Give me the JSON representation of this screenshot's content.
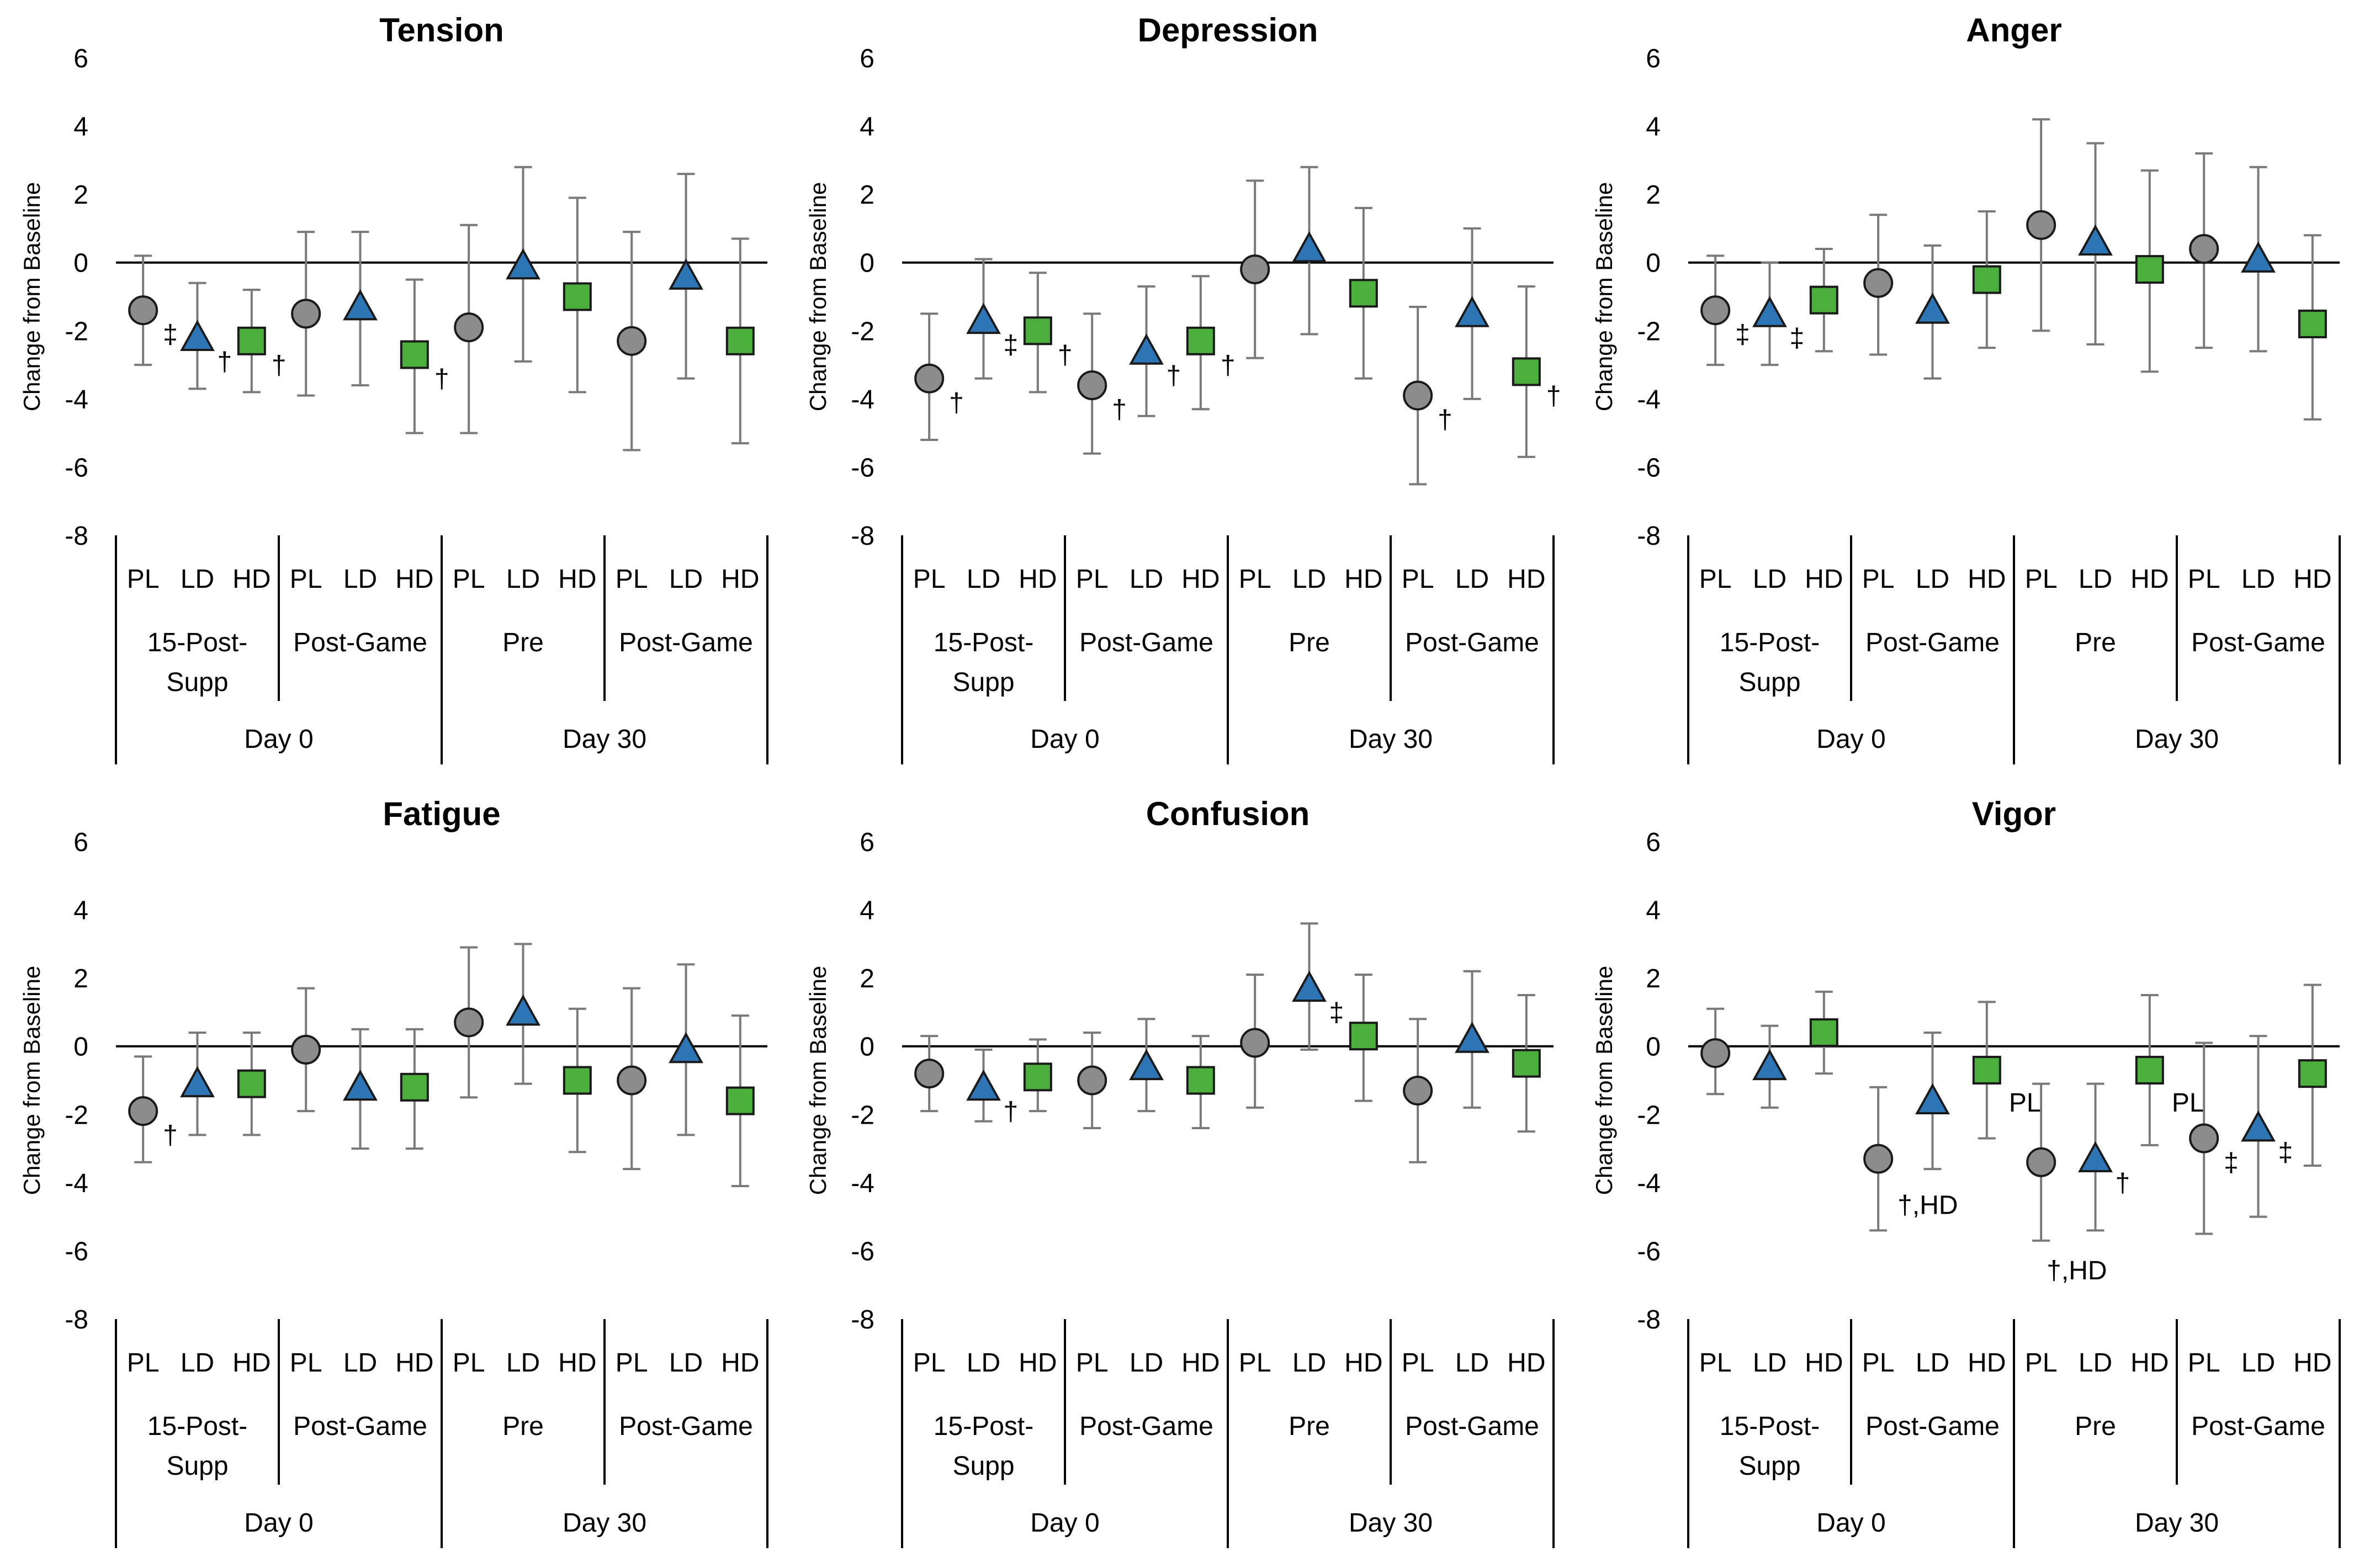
{
  "figure": {
    "y_axis_label": "Change from Baseline"
  },
  "chart_data": [
    {
      "type": "scatter",
      "title": "Tension",
      "ylabel": "Change from Baseline",
      "ylim": [
        -8,
        6
      ],
      "yticks": [
        6,
        4,
        2,
        0,
        -2,
        -4,
        -6,
        -8
      ],
      "x_groups": [
        {
          "level1": "PL",
          "level2": "15-Post-Supp",
          "level3": "Day 0"
        },
        {
          "level1": "LD",
          "level2": "15-Post-Supp",
          "level3": "Day 0"
        },
        {
          "level1": "HD",
          "level2": "15-Post-Supp",
          "level3": "Day 0"
        },
        {
          "level1": "PL",
          "level2": "Post-Game",
          "level3": "Day 0"
        },
        {
          "level1": "LD",
          "level2": "Post-Game",
          "level3": "Day 0"
        },
        {
          "level1": "HD",
          "level2": "Post-Game",
          "level3": "Day 0"
        },
        {
          "level1": "PL",
          "level2": "Pre",
          "level3": "Day 30"
        },
        {
          "level1": "LD",
          "level2": "Pre",
          "level3": "Day 30"
        },
        {
          "level1": "HD",
          "level2": "Pre",
          "level3": "Day 30"
        },
        {
          "level1": "PL",
          "level2": "Post-Game",
          "level3": "Day 30"
        },
        {
          "level1": "LD",
          "level2": "Post-Game",
          "level3": "Day 30"
        },
        {
          "level1": "HD",
          "level2": "Post-Game",
          "level3": "Day 30"
        }
      ],
      "points": [
        {
          "group": "PL",
          "mean": -1.4,
          "lo": -3.0,
          "hi": 0.2,
          "mark": "‡"
        },
        {
          "group": "LD",
          "mean": -2.2,
          "lo": -3.7,
          "hi": -0.6,
          "mark": "†"
        },
        {
          "group": "HD",
          "mean": -2.3,
          "lo": -3.8,
          "hi": -0.8,
          "mark": "†"
        },
        {
          "group": "PL",
          "mean": -1.5,
          "lo": -3.9,
          "hi": 0.9,
          "mark": ""
        },
        {
          "group": "LD",
          "mean": -1.3,
          "lo": -3.6,
          "hi": 0.9,
          "mark": ""
        },
        {
          "group": "HD",
          "mean": -2.7,
          "lo": -5.0,
          "hi": -0.5,
          "mark": "†"
        },
        {
          "group": "PL",
          "mean": -1.9,
          "lo": -5.0,
          "hi": 1.1,
          "mark": ""
        },
        {
          "group": "LD",
          "mean": -0.1,
          "lo": -2.9,
          "hi": 2.8,
          "mark": ""
        },
        {
          "group": "HD",
          "mean": -1.0,
          "lo": -3.8,
          "hi": 1.9,
          "mark": ""
        },
        {
          "group": "PL",
          "mean": -2.3,
          "lo": -5.5,
          "hi": 0.9,
          "mark": ""
        },
        {
          "group": "LD",
          "mean": -0.4,
          "lo": -3.4,
          "hi": 2.6,
          "mark": ""
        },
        {
          "group": "HD",
          "mean": -2.3,
          "lo": -5.3,
          "hi": 0.7,
          "mark": ""
        }
      ]
    },
    {
      "type": "scatter",
      "title": "Depression",
      "ylabel": "Change from Baseline",
      "ylim": [
        -8,
        6
      ],
      "yticks": [
        6,
        4,
        2,
        0,
        -2,
        -4,
        -6,
        -8
      ],
      "x_groups": [
        {
          "level1": "PL",
          "level2": "15-Post-Supp",
          "level3": "Day 0"
        },
        {
          "level1": "LD",
          "level2": "15-Post-Supp",
          "level3": "Day 0"
        },
        {
          "level1": "HD",
          "level2": "15-Post-Supp",
          "level3": "Day 0"
        },
        {
          "level1": "PL",
          "level2": "Post-Game",
          "level3": "Day 0"
        },
        {
          "level1": "LD",
          "level2": "Post-Game",
          "level3": "Day 0"
        },
        {
          "level1": "HD",
          "level2": "Post-Game",
          "level3": "Day 0"
        },
        {
          "level1": "PL",
          "level2": "Pre",
          "level3": "Day 30"
        },
        {
          "level1": "LD",
          "level2": "Pre",
          "level3": "Day 30"
        },
        {
          "level1": "HD",
          "level2": "Pre",
          "level3": "Day 30"
        },
        {
          "level1": "PL",
          "level2": "Post-Game",
          "level3": "Day 30"
        },
        {
          "level1": "LD",
          "level2": "Post-Game",
          "level3": "Day 30"
        },
        {
          "level1": "HD",
          "level2": "Post-Game",
          "level3": "Day 30"
        }
      ],
      "points": [
        {
          "group": "PL",
          "mean": -3.4,
          "lo": -5.2,
          "hi": -1.5,
          "mark": "†"
        },
        {
          "group": "LD",
          "mean": -1.7,
          "lo": -3.4,
          "hi": 0.1,
          "mark": "‡"
        },
        {
          "group": "HD",
          "mean": -2.0,
          "lo": -3.8,
          "hi": -0.3,
          "mark": "†"
        },
        {
          "group": "PL",
          "mean": -3.6,
          "lo": -5.6,
          "hi": -1.5,
          "mark": "†"
        },
        {
          "group": "LD",
          "mean": -2.6,
          "lo": -4.5,
          "hi": -0.7,
          "mark": "†"
        },
        {
          "group": "HD",
          "mean": -2.3,
          "lo": -4.3,
          "hi": -0.4,
          "mark": "†"
        },
        {
          "group": "PL",
          "mean": -0.2,
          "lo": -2.8,
          "hi": 2.4,
          "mark": ""
        },
        {
          "group": "LD",
          "mean": 0.4,
          "lo": -2.1,
          "hi": 2.8,
          "mark": ""
        },
        {
          "group": "HD",
          "mean": -0.9,
          "lo": -3.4,
          "hi": 1.6,
          "mark": ""
        },
        {
          "group": "PL",
          "mean": -3.9,
          "lo": -6.5,
          "hi": -1.3,
          "mark": "†"
        },
        {
          "group": "LD",
          "mean": -1.5,
          "lo": -4.0,
          "hi": 1.0,
          "mark": ""
        },
        {
          "group": "HD",
          "mean": -3.2,
          "lo": -5.7,
          "hi": -0.7,
          "mark": "†"
        }
      ]
    },
    {
      "type": "scatter",
      "title": "Anger",
      "ylabel": "Change from Baseline",
      "ylim": [
        -8,
        6
      ],
      "yticks": [
        6,
        4,
        2,
        0,
        -2,
        -4,
        -6,
        -8
      ],
      "x_groups": [
        {
          "level1": "PL",
          "level2": "15-Post-Supp",
          "level3": "Day 0"
        },
        {
          "level1": "LD",
          "level2": "15-Post-Supp",
          "level3": "Day 0"
        },
        {
          "level1": "HD",
          "level2": "15-Post-Supp",
          "level3": "Day 0"
        },
        {
          "level1": "PL",
          "level2": "Post-Game",
          "level3": "Day 0"
        },
        {
          "level1": "LD",
          "level2": "Post-Game",
          "level3": "Day 0"
        },
        {
          "level1": "HD",
          "level2": "Post-Game",
          "level3": "Day 0"
        },
        {
          "level1": "PL",
          "level2": "Pre",
          "level3": "Day 30"
        },
        {
          "level1": "LD",
          "level2": "Pre",
          "level3": "Day 30"
        },
        {
          "level1": "HD",
          "level2": "Pre",
          "level3": "Day 30"
        },
        {
          "level1": "PL",
          "level2": "Post-Game",
          "level3": "Day 30"
        },
        {
          "level1": "LD",
          "level2": "Post-Game",
          "level3": "Day 30"
        },
        {
          "level1": "HD",
          "level2": "Post-Game",
          "level3": "Day 30"
        }
      ],
      "points": [
        {
          "group": "PL",
          "mean": -1.4,
          "lo": -3.0,
          "hi": 0.2,
          "mark": "‡"
        },
        {
          "group": "LD",
          "mean": -1.5,
          "lo": -3.0,
          "hi": 0.0,
          "mark": "‡"
        },
        {
          "group": "HD",
          "mean": -1.1,
          "lo": -2.6,
          "hi": 0.4,
          "mark": ""
        },
        {
          "group": "PL",
          "mean": -0.6,
          "lo": -2.7,
          "hi": 1.4,
          "mark": ""
        },
        {
          "group": "LD",
          "mean": -1.4,
          "lo": -3.4,
          "hi": 0.5,
          "mark": ""
        },
        {
          "group": "HD",
          "mean": -0.5,
          "lo": -2.5,
          "hi": 1.5,
          "mark": ""
        },
        {
          "group": "PL",
          "mean": 1.1,
          "lo": -2.0,
          "hi": 4.2,
          "mark": ""
        },
        {
          "group": "LD",
          "mean": 0.6,
          "lo": -2.4,
          "hi": 3.5,
          "mark": ""
        },
        {
          "group": "HD",
          "mean": -0.2,
          "lo": -3.2,
          "hi": 2.7,
          "mark": ""
        },
        {
          "group": "PL",
          "mean": 0.4,
          "lo": -2.5,
          "hi": 3.2,
          "mark": ""
        },
        {
          "group": "LD",
          "mean": 0.1,
          "lo": -2.6,
          "hi": 2.8,
          "mark": ""
        },
        {
          "group": "HD",
          "mean": -1.8,
          "lo": -4.6,
          "hi": 0.8,
          "mark": ""
        }
      ]
    },
    {
      "type": "scatter",
      "title": "Fatigue",
      "ylabel": "Change from Baseline",
      "ylim": [
        -8,
        6
      ],
      "yticks": [
        6,
        4,
        2,
        0,
        -2,
        -4,
        -6,
        -8
      ],
      "x_groups": [
        {
          "level1": "PL",
          "level2": "15-Post-Supp",
          "level3": "Day 0"
        },
        {
          "level1": "LD",
          "level2": "15-Post-Supp",
          "level3": "Day 0"
        },
        {
          "level1": "HD",
          "level2": "15-Post-Supp",
          "level3": "Day 0"
        },
        {
          "level1": "PL",
          "level2": "Post-Game",
          "level3": "Day 0"
        },
        {
          "level1": "LD",
          "level2": "Post-Game",
          "level3": "Day 0"
        },
        {
          "level1": "HD",
          "level2": "Post-Game",
          "level3": "Day 0"
        },
        {
          "level1": "PL",
          "level2": "Pre",
          "level3": "Day 30"
        },
        {
          "level1": "LD",
          "level2": "Pre",
          "level3": "Day 30"
        },
        {
          "level1": "HD",
          "level2": "Pre",
          "level3": "Day 30"
        },
        {
          "level1": "PL",
          "level2": "Post-Game",
          "level3": "Day 30"
        },
        {
          "level1": "LD",
          "level2": "Post-Game",
          "level3": "Day 30"
        },
        {
          "level1": "HD",
          "level2": "Post-Game",
          "level3": "Day 30"
        }
      ],
      "points": [
        {
          "group": "PL",
          "mean": -1.9,
          "lo": -3.4,
          "hi": -0.3,
          "mark": "†"
        },
        {
          "group": "LD",
          "mean": -1.1,
          "lo": -2.6,
          "hi": 0.4,
          "mark": ""
        },
        {
          "group": "HD",
          "mean": -1.1,
          "lo": -2.6,
          "hi": 0.4,
          "mark": ""
        },
        {
          "group": "PL",
          "mean": -0.1,
          "lo": -1.9,
          "hi": 1.7,
          "mark": ""
        },
        {
          "group": "LD",
          "mean": -1.2,
          "lo": -3.0,
          "hi": 0.5,
          "mark": ""
        },
        {
          "group": "HD",
          "mean": -1.2,
          "lo": -3.0,
          "hi": 0.5,
          "mark": ""
        },
        {
          "group": "PL",
          "mean": 0.7,
          "lo": -1.5,
          "hi": 2.9,
          "mark": ""
        },
        {
          "group": "LD",
          "mean": 1.0,
          "lo": -1.1,
          "hi": 3.0,
          "mark": ""
        },
        {
          "group": "HD",
          "mean": -1.0,
          "lo": -3.1,
          "hi": 1.1,
          "mark": ""
        },
        {
          "group": "PL",
          "mean": -1.0,
          "lo": -3.6,
          "hi": 1.7,
          "mark": ""
        },
        {
          "group": "LD",
          "mean": -0.1,
          "lo": -2.6,
          "hi": 2.4,
          "mark": ""
        },
        {
          "group": "HD",
          "mean": -1.6,
          "lo": -4.1,
          "hi": 0.9,
          "mark": ""
        }
      ]
    },
    {
      "type": "scatter",
      "title": "Confusion",
      "ylabel": "Change from Baseline",
      "ylim": [
        -8,
        6
      ],
      "yticks": [
        6,
        4,
        2,
        0,
        -2,
        -4,
        -6,
        -8
      ],
      "x_groups": [
        {
          "level1": "PL",
          "level2": "15-Post-Supp",
          "level3": "Day 0"
        },
        {
          "level1": "LD",
          "level2": "15-Post-Supp",
          "level3": "Day 0"
        },
        {
          "level1": "HD",
          "level2": "15-Post-Supp",
          "level3": "Day 0"
        },
        {
          "level1": "PL",
          "level2": "Post-Game",
          "level3": "Day 0"
        },
        {
          "level1": "LD",
          "level2": "Post-Game",
          "level3": "Day 0"
        },
        {
          "level1": "HD",
          "level2": "Post-Game",
          "level3": "Day 0"
        },
        {
          "level1": "PL",
          "level2": "Pre",
          "level3": "Day 30"
        },
        {
          "level1": "LD",
          "level2": "Pre",
          "level3": "Day 30"
        },
        {
          "level1": "HD",
          "level2": "Pre",
          "level3": "Day 30"
        },
        {
          "level1": "PL",
          "level2": "Post-Game",
          "level3": "Day 30"
        },
        {
          "level1": "LD",
          "level2": "Post-Game",
          "level3": "Day 30"
        },
        {
          "level1": "HD",
          "level2": "Post-Game",
          "level3": "Day 30"
        }
      ],
      "points": [
        {
          "group": "PL",
          "mean": -0.8,
          "lo": -1.9,
          "hi": 0.3,
          "mark": ""
        },
        {
          "group": "LD",
          "mean": -1.2,
          "lo": -2.2,
          "hi": -0.1,
          "mark": "†"
        },
        {
          "group": "HD",
          "mean": -0.9,
          "lo": -1.9,
          "hi": 0.2,
          "mark": ""
        },
        {
          "group": "PL",
          "mean": -1.0,
          "lo": -2.4,
          "hi": 0.4,
          "mark": ""
        },
        {
          "group": "LD",
          "mean": -0.6,
          "lo": -1.9,
          "hi": 0.8,
          "mark": ""
        },
        {
          "group": "HD",
          "mean": -1.0,
          "lo": -2.4,
          "hi": 0.3,
          "mark": ""
        },
        {
          "group": "PL",
          "mean": 0.1,
          "lo": -1.8,
          "hi": 2.1,
          "mark": ""
        },
        {
          "group": "LD",
          "mean": 1.7,
          "lo": -0.1,
          "hi": 3.6,
          "mark": "‡"
        },
        {
          "group": "HD",
          "mean": 0.3,
          "lo": -1.6,
          "hi": 2.1,
          "mark": ""
        },
        {
          "group": "PL",
          "mean": -1.3,
          "lo": -3.4,
          "hi": 0.8,
          "mark": ""
        },
        {
          "group": "LD",
          "mean": 0.2,
          "lo": -1.8,
          "hi": 2.2,
          "mark": ""
        },
        {
          "group": "HD",
          "mean": -0.5,
          "lo": -2.5,
          "hi": 1.5,
          "mark": ""
        }
      ]
    },
    {
      "type": "scatter",
      "title": "Vigor",
      "ylabel": "Change from Baseline",
      "ylim": [
        -8,
        6
      ],
      "yticks": [
        6,
        4,
        2,
        0,
        -2,
        -4,
        -6,
        -8
      ],
      "x_groups": [
        {
          "level1": "PL",
          "level2": "15-Post-Supp",
          "level3": "Day 0"
        },
        {
          "level1": "LD",
          "level2": "15-Post-Supp",
          "level3": "Day 0"
        },
        {
          "level1": "HD",
          "level2": "15-Post-Supp",
          "level3": "Day 0"
        },
        {
          "level1": "PL",
          "level2": "Post-Game",
          "level3": "Day 0"
        },
        {
          "level1": "LD",
          "level2": "Post-Game",
          "level3": "Day 0"
        },
        {
          "level1": "HD",
          "level2": "Post-Game",
          "level3": "Day 0"
        },
        {
          "level1": "PL",
          "level2": "Pre",
          "level3": "Day 30"
        },
        {
          "level1": "LD",
          "level2": "Pre",
          "level3": "Day 30"
        },
        {
          "level1": "HD",
          "level2": "Pre",
          "level3": "Day 30"
        },
        {
          "level1": "PL",
          "level2": "Post-Game",
          "level3": "Day 30"
        },
        {
          "level1": "LD",
          "level2": "Post-Game",
          "level3": "Day 30"
        },
        {
          "level1": "HD",
          "level2": "Post-Game",
          "level3": "Day 30"
        }
      ],
      "points": [
        {
          "group": "PL",
          "mean": -0.2,
          "lo": -1.4,
          "hi": 1.1,
          "mark": ""
        },
        {
          "group": "LD",
          "mean": -0.6,
          "lo": -1.8,
          "hi": 0.6,
          "mark": ""
        },
        {
          "group": "HD",
          "mean": 0.4,
          "lo": -0.8,
          "hi": 1.6,
          "mark": ""
        },
        {
          "group": "PL",
          "mean": -3.3,
          "lo": -5.4,
          "hi": -1.2,
          "mark": "†,HD"
        },
        {
          "group": "LD",
          "mean": -1.6,
          "lo": -3.6,
          "hi": 0.4,
          "mark": ""
        },
        {
          "group": "HD",
          "mean": -0.7,
          "lo": -2.7,
          "hi": 1.3,
          "mark": "PL"
        },
        {
          "group": "PL",
          "mean": -3.4,
          "lo": -5.7,
          "hi": -1.1,
          "mark": "†,HD"
        },
        {
          "group": "LD",
          "mean": -3.3,
          "lo": -5.4,
          "hi": -1.1,
          "mark": "†"
        },
        {
          "group": "HD",
          "mean": -0.7,
          "lo": -2.9,
          "hi": 1.5,
          "mark": "PL"
        },
        {
          "group": "PL",
          "mean": -2.7,
          "lo": -5.5,
          "hi": 0.1,
          "mark": "‡"
        },
        {
          "group": "LD",
          "mean": -2.4,
          "lo": -5.0,
          "hi": 0.3,
          "mark": "‡"
        },
        {
          "group": "HD",
          "mean": -0.8,
          "lo": -3.5,
          "hi": 1.8,
          "mark": ""
        }
      ]
    }
  ]
}
